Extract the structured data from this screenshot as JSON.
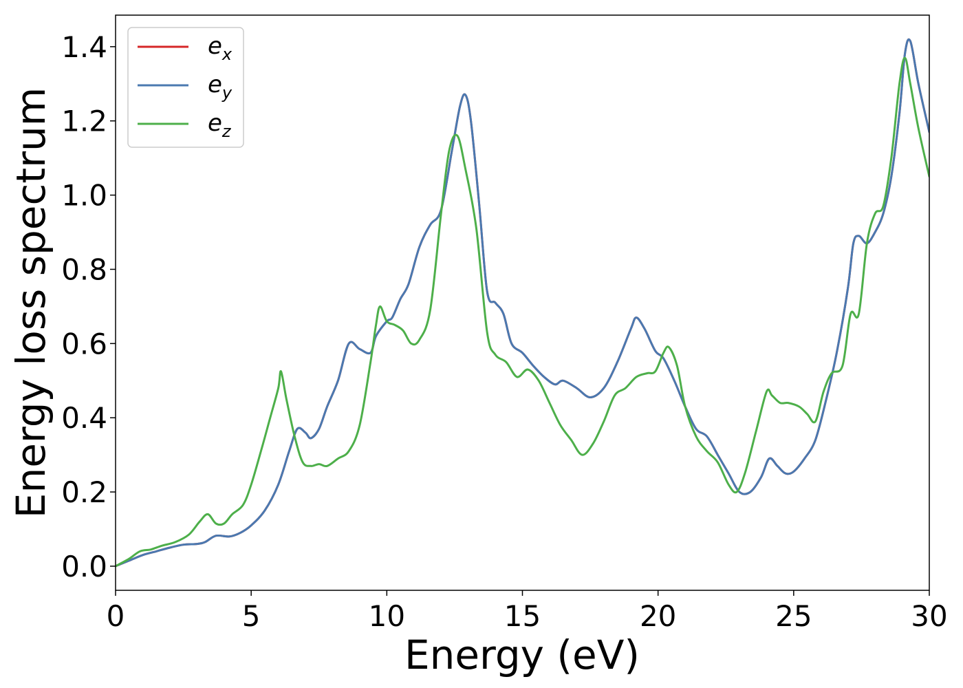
{
  "chart_data": {
    "type": "line",
    "title": "",
    "xlabel": "Energy (eV)",
    "ylabel": "Energy loss spectrum",
    "xlim": [
      0,
      30
    ],
    "ylim": [
      -0.065,
      1.485
    ],
    "xticks": [
      0,
      5,
      10,
      15,
      20,
      25,
      30
    ],
    "yticks": [
      0.0,
      0.2,
      0.4,
      0.6,
      0.8,
      1.0,
      1.2,
      1.4
    ],
    "xtick_labels": [
      "0",
      "5",
      "10",
      "15",
      "20",
      "25",
      "30"
    ],
    "ytick_labels": [
      "0.0",
      "0.2",
      "0.4",
      "0.6",
      "0.8",
      "1.0",
      "1.2",
      "1.4"
    ],
    "grid": false,
    "legend_position": "top-left",
    "series": [
      {
        "name": "e_x",
        "label_base": "e",
        "label_sub": "x",
        "color": "#d62728",
        "x": [
          0,
          0.5,
          1.0,
          1.5,
          2.0,
          2.5,
          3.0,
          3.3,
          3.7,
          4.2,
          4.6,
          5.0,
          5.5,
          6.0,
          6.4,
          6.7,
          7.0,
          7.2,
          7.5,
          7.8,
          8.2,
          8.6,
          9.0,
          9.4,
          9.6,
          10.0,
          10.2,
          10.5,
          10.8,
          11.2,
          11.6,
          12.0,
          12.4,
          12.7,
          12.9,
          13.1,
          13.4,
          13.7,
          14.0,
          14.3,
          14.6,
          15.0,
          15.4,
          15.8,
          16.2,
          16.5,
          17.0,
          17.5,
          18.0,
          18.5,
          19.0,
          19.2,
          19.5,
          19.9,
          20.2,
          20.6,
          21.0,
          21.4,
          21.8,
          22.2,
          22.6,
          23.0,
          23.4,
          23.8,
          24.1,
          24.4,
          24.7,
          25.0,
          25.4,
          25.8,
          26.2,
          26.6,
          27.0,
          27.2,
          27.4,
          27.7,
          28.0,
          28.3,
          28.6,
          28.9,
          29.1,
          29.3,
          29.6,
          30.0
        ],
        "y": [
          0.0,
          0.015,
          0.03,
          0.04,
          0.05,
          0.058,
          0.06,
          0.065,
          0.082,
          0.08,
          0.09,
          0.11,
          0.15,
          0.22,
          0.31,
          0.37,
          0.36,
          0.345,
          0.37,
          0.43,
          0.5,
          0.6,
          0.585,
          0.575,
          0.62,
          0.66,
          0.67,
          0.72,
          0.76,
          0.86,
          0.92,
          0.96,
          1.12,
          1.24,
          1.27,
          1.2,
          0.98,
          0.74,
          0.71,
          0.68,
          0.6,
          0.575,
          0.54,
          0.51,
          0.49,
          0.5,
          0.48,
          0.455,
          0.48,
          0.55,
          0.64,
          0.67,
          0.64,
          0.58,
          0.56,
          0.5,
          0.43,
          0.37,
          0.35,
          0.3,
          0.25,
          0.2,
          0.2,
          0.24,
          0.29,
          0.27,
          0.25,
          0.255,
          0.29,
          0.34,
          0.45,
          0.58,
          0.75,
          0.87,
          0.89,
          0.87,
          0.9,
          0.95,
          1.05,
          1.22,
          1.38,
          1.415,
          1.3,
          1.17
        ]
      },
      {
        "name": "e_y",
        "label_base": "e",
        "label_sub": "y",
        "color": "#4a79b0",
        "x": [
          0,
          0.5,
          1.0,
          1.5,
          2.0,
          2.5,
          3.0,
          3.3,
          3.7,
          4.2,
          4.6,
          5.0,
          5.5,
          6.0,
          6.4,
          6.7,
          7.0,
          7.2,
          7.5,
          7.8,
          8.2,
          8.6,
          9.0,
          9.4,
          9.6,
          10.0,
          10.2,
          10.5,
          10.8,
          11.2,
          11.6,
          12.0,
          12.4,
          12.7,
          12.9,
          13.1,
          13.4,
          13.7,
          14.0,
          14.3,
          14.6,
          15.0,
          15.4,
          15.8,
          16.2,
          16.5,
          17.0,
          17.5,
          18.0,
          18.5,
          19.0,
          19.2,
          19.5,
          19.9,
          20.2,
          20.6,
          21.0,
          21.4,
          21.8,
          22.2,
          22.6,
          23.0,
          23.4,
          23.8,
          24.1,
          24.4,
          24.7,
          25.0,
          25.4,
          25.8,
          26.2,
          26.6,
          27.0,
          27.2,
          27.4,
          27.7,
          28.0,
          28.3,
          28.6,
          28.9,
          29.1,
          29.3,
          29.6,
          30.0
        ],
        "y": [
          0.0,
          0.015,
          0.03,
          0.04,
          0.05,
          0.058,
          0.06,
          0.065,
          0.082,
          0.08,
          0.09,
          0.11,
          0.15,
          0.22,
          0.31,
          0.37,
          0.36,
          0.345,
          0.37,
          0.43,
          0.5,
          0.6,
          0.585,
          0.575,
          0.62,
          0.66,
          0.67,
          0.72,
          0.76,
          0.86,
          0.92,
          0.96,
          1.12,
          1.24,
          1.27,
          1.2,
          0.98,
          0.74,
          0.71,
          0.68,
          0.6,
          0.575,
          0.54,
          0.51,
          0.49,
          0.5,
          0.48,
          0.455,
          0.48,
          0.55,
          0.64,
          0.67,
          0.64,
          0.58,
          0.56,
          0.5,
          0.43,
          0.37,
          0.35,
          0.3,
          0.25,
          0.2,
          0.2,
          0.24,
          0.29,
          0.27,
          0.25,
          0.255,
          0.29,
          0.34,
          0.45,
          0.58,
          0.75,
          0.87,
          0.89,
          0.87,
          0.9,
          0.95,
          1.05,
          1.22,
          1.38,
          1.415,
          1.3,
          1.17
        ]
      },
      {
        "name": "e_z",
        "label_base": "e",
        "label_sub": "z",
        "color": "#4daf4a",
        "x": [
          0,
          0.5,
          0.9,
          1.3,
          1.7,
          2.2,
          2.7,
          3.1,
          3.4,
          3.7,
          4.0,
          4.3,
          4.7,
          5.0,
          5.4,
          5.7,
          6.0,
          6.1,
          6.3,
          6.6,
          6.9,
          7.2,
          7.5,
          7.8,
          8.2,
          8.6,
          9.0,
          9.4,
          9.6,
          9.75,
          10.0,
          10.3,
          10.6,
          10.9,
          11.2,
          11.6,
          12.0,
          12.3,
          12.6,
          12.9,
          13.3,
          13.7,
          14.0,
          14.4,
          14.8,
          15.2,
          15.6,
          16.0,
          16.4,
          16.8,
          17.2,
          17.6,
          18.0,
          18.4,
          18.8,
          19.2,
          19.6,
          19.9,
          20.2,
          20.4,
          20.7,
          21.0,
          21.4,
          21.8,
          22.2,
          22.6,
          22.9,
          23.2,
          23.6,
          24.0,
          24.2,
          24.5,
          24.8,
          25.2,
          25.5,
          25.8,
          26.1,
          26.4,
          26.8,
          27.1,
          27.4,
          27.7,
          28.0,
          28.3,
          28.6,
          28.9,
          29.1,
          29.3,
          29.6,
          30.0
        ],
        "y": [
          0.0,
          0.02,
          0.04,
          0.045,
          0.055,
          0.065,
          0.085,
          0.12,
          0.14,
          0.115,
          0.115,
          0.14,
          0.165,
          0.22,
          0.32,
          0.4,
          0.48,
          0.525,
          0.45,
          0.35,
          0.28,
          0.27,
          0.275,
          0.27,
          0.29,
          0.31,
          0.38,
          0.55,
          0.65,
          0.7,
          0.66,
          0.65,
          0.635,
          0.6,
          0.61,
          0.69,
          0.95,
          1.12,
          1.16,
          1.07,
          0.91,
          0.63,
          0.57,
          0.55,
          0.51,
          0.53,
          0.5,
          0.44,
          0.38,
          0.34,
          0.3,
          0.33,
          0.39,
          0.46,
          0.48,
          0.51,
          0.52,
          0.525,
          0.575,
          0.59,
          0.54,
          0.43,
          0.35,
          0.31,
          0.28,
          0.22,
          0.2,
          0.25,
          0.36,
          0.47,
          0.46,
          0.44,
          0.44,
          0.43,
          0.41,
          0.39,
          0.47,
          0.52,
          0.54,
          0.68,
          0.68,
          0.87,
          0.95,
          0.97,
          1.1,
          1.3,
          1.37,
          1.3,
          1.18,
          1.05
        ]
      }
    ]
  }
}
